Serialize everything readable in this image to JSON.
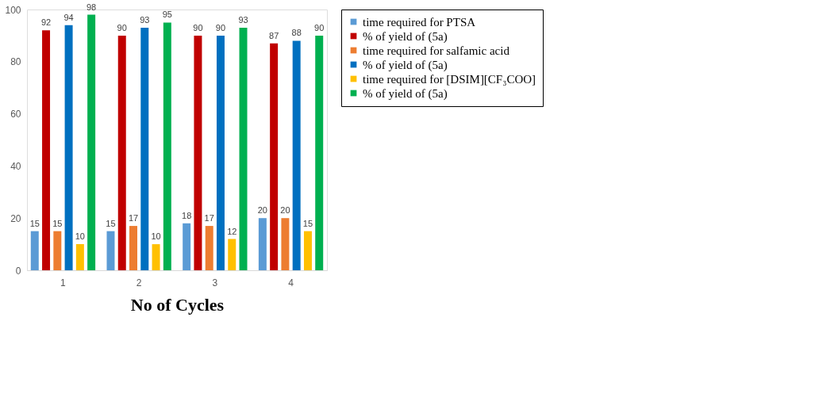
{
  "chart_data": {
    "type": "bar",
    "xlabel": "No of Cycles",
    "categories": [
      "1",
      "2",
      "3",
      "4"
    ],
    "series": [
      {
        "name": "time required for PTSA",
        "color": "#5b9bd5",
        "values": [
          15,
          15,
          18,
          20
        ]
      },
      {
        "name": "% of yield of (5a)",
        "color": "#c00000",
        "values": [
          92,
          90,
          90,
          87
        ]
      },
      {
        "name": "time required for salfamic acid",
        "color": "#ed7d31",
        "values": [
          15,
          17,
          17,
          20
        ]
      },
      {
        "name": "% of yield of (5a)",
        "color": "#0070c0",
        "values": [
          94,
          93,
          90,
          88
        ]
      },
      {
        "name": "time required for [DSIM][CF₃COO]",
        "color": "#ffc000",
        "values": [
          10,
          10,
          12,
          15
        ]
      },
      {
        "name": "% of yield of (5a)",
        "color": "#00b050",
        "values": [
          98,
          95,
          93,
          90
        ]
      }
    ],
    "ylim": [
      0,
      100
    ],
    "yticks": [
      0,
      20,
      40,
      60,
      80,
      100
    ],
    "grid": false,
    "data_labels": true,
    "legend": "right"
  }
}
